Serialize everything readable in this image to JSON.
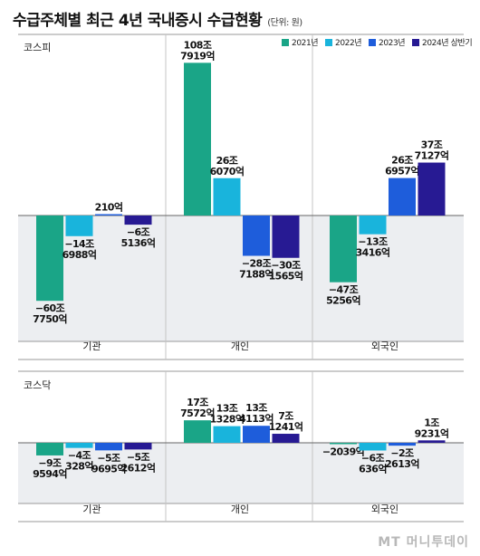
{
  "title": "수급주체별 최근 4년 국내증시 수급현황",
  "unit_note": "(단위: 원)",
  "watermark": "MT 머니투데이",
  "colors": [
    "#1aa587",
    "#19b4dc",
    "#1e5ddb",
    "#271a93"
  ],
  "chart_data": [
    {
      "type": "bar",
      "market": "코스피",
      "categories": [
        "기관",
        "개인",
        "외국인"
      ],
      "unit_label": "조원",
      "legend": [
        "2021년",
        "2022년",
        "2023년",
        "2024년 상반기"
      ],
      "legend_position": "top-right",
      "series": [
        {
          "name": "2021년",
          "values": [
            -60.775,
            108.7919,
            -47.5256
          ],
          "labels": [
            [
              "−60조",
              "7750억"
            ],
            [
              "108조",
              "7919억"
            ],
            [
              "−47조",
              "5256억"
            ]
          ]
        },
        {
          "name": "2022년",
          "values": [
            -14.6988,
            26.607,
            -13.3416
          ],
          "labels": [
            [
              "−14조",
              "6988억"
            ],
            [
              "26조",
              "6070억"
            ],
            [
              "−13조",
              "3416억"
            ]
          ]
        },
        {
          "name": "2023년",
          "values": [
            0.021,
            -28.7188,
            26.6957
          ],
          "labels": [
            [
              "210억"
            ],
            [
              "−28조",
              "7188억"
            ],
            [
              "26조",
              "6957억"
            ]
          ]
        },
        {
          "name": "2024년 상반기",
          "values": [
            -6.5136,
            -30.1565,
            37.7127
          ],
          "labels": [
            [
              "−6조",
              "5136억"
            ],
            [
              "−30조",
              "1565억"
            ],
            [
              "37조",
              "7127억"
            ]
          ]
        }
      ]
    },
    {
      "type": "bar",
      "market": "코스닥",
      "categories": [
        "기관",
        "개인",
        "외국인"
      ],
      "unit_label": "조원",
      "series": [
        {
          "name": "2021년",
          "values": [
            -9.9594,
            17.7572,
            -0.2039
          ],
          "labels": [
            [
              "−9조",
              "9594억"
            ],
            [
              "17조",
              "7572억"
            ],
            [
              "−2039억"
            ]
          ]
        },
        {
          "name": "2022년",
          "values": [
            -4.0328,
            13.1328,
            -6.0636
          ],
          "labels": [
            [
              "−4조",
              "328억"
            ],
            [
              "13조",
              "1328억"
            ],
            [
              "−6조",
              "636억"
            ]
          ]
        },
        {
          "name": "2023년",
          "values": [
            -5.9695,
            13.4113,
            -2.2613
          ],
          "labels": [
            [
              "−5조",
              "9695억"
            ],
            [
              "13조",
              "4113억"
            ],
            [
              "−2조",
              "2613억"
            ]
          ]
        },
        {
          "name": "2024년 상반기",
          "values": [
            -5.2612,
            7.1241,
            1.9231
          ],
          "labels": [
            [
              "−5조",
              "2612억"
            ],
            [
              "7조",
              "1241억"
            ],
            [
              "1조",
              "9231억"
            ]
          ]
        }
      ]
    }
  ]
}
